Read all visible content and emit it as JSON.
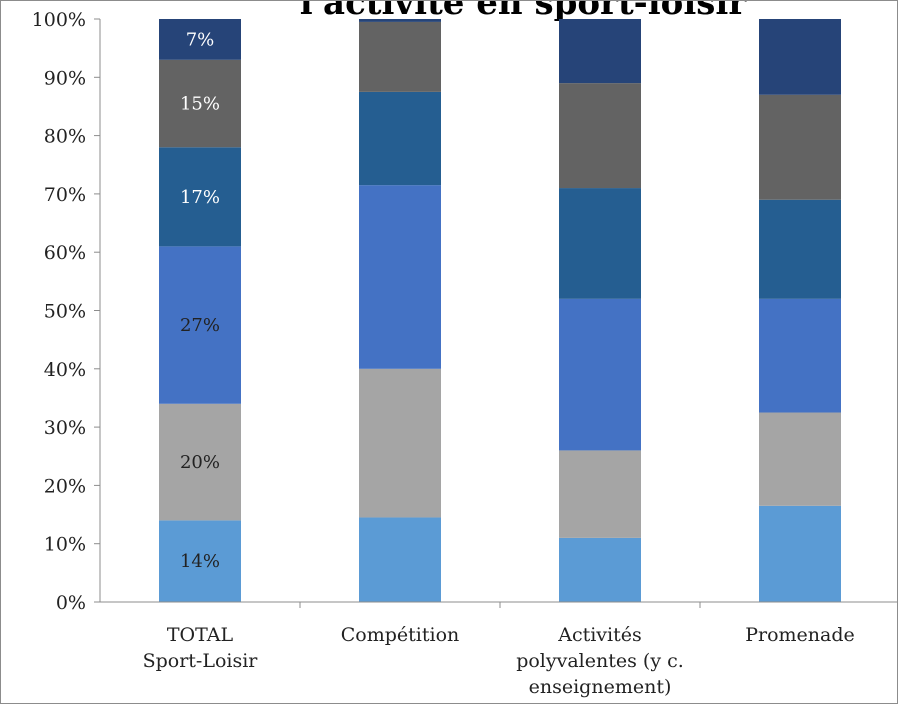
{
  "chart_data": {
    "type": "bar",
    "stacked": true,
    "percent": true,
    "title": "l'activité en sport-loisir",
    "xlabel": "",
    "ylabel": "",
    "ylim": [
      0,
      100
    ],
    "yticks": [
      "0%",
      "10%",
      "20%",
      "30%",
      "40%",
      "50%",
      "60%",
      "70%",
      "80%",
      "90%",
      "100%"
    ],
    "grid": false,
    "legend": "none",
    "categories": [
      [
        "TOTAL",
        "Sport-Loisir"
      ],
      [
        "Compétition"
      ],
      [
        "Activités",
        "polyvalentes (y c.",
        "enseignement)"
      ],
      [
        "Promenade"
      ]
    ],
    "series": [
      {
        "color": "#5b9bd5",
        "label_color": "#222222",
        "values": [
          14,
          14.5,
          11,
          16.5
        ],
        "labels": [
          "14%",
          "",
          "",
          ""
        ]
      },
      {
        "color": "#a5a5a5",
        "label_color": "#222222",
        "values": [
          20,
          25.5,
          15,
          16
        ],
        "labels": [
          "20%",
          "",
          "",
          ""
        ]
      },
      {
        "color": "#4472c4",
        "label_color": "#222222",
        "values": [
          27,
          31.5,
          26,
          19.5
        ],
        "labels": [
          "27%",
          "",
          "",
          ""
        ]
      },
      {
        "color": "#255e91",
        "label_color": "#ffffff",
        "values": [
          17,
          16,
          19,
          17
        ],
        "labels": [
          "17%",
          "",
          "",
          ""
        ]
      },
      {
        "color": "#636363",
        "label_color": "#ffffff",
        "values": [
          15,
          12,
          18,
          18
        ],
        "labels": [
          "15%",
          "",
          "",
          ""
        ]
      },
      {
        "color": "#264478",
        "label_color": "#ffffff",
        "values": [
          7,
          0.5,
          11,
          13
        ],
        "labels": [
          "7%",
          "",
          "",
          ""
        ]
      }
    ]
  }
}
